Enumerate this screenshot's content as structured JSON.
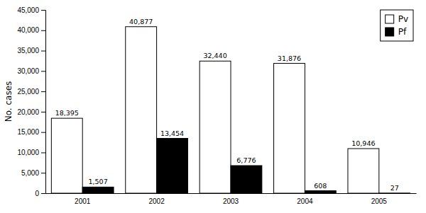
{
  "chart_data": {
    "type": "bar",
    "categories": [
      "2001",
      "2002",
      "2003",
      "2004",
      "2005"
    ],
    "series": [
      {
        "name": "Pv",
        "color": "#ffffff",
        "values": [
          18395,
          40877,
          32440,
          31876,
          10946
        ],
        "value_labels": [
          "18,395",
          "40,877",
          "32,440",
          "31,876",
          "10,946"
        ]
      },
      {
        "name": "Pf",
        "color": "#000000",
        "values": [
          1507,
          13454,
          6776,
          608,
          27
        ],
        "value_labels": [
          "1,507",
          "13,454",
          "6,776",
          "608",
          "27"
        ]
      }
    ],
    "y_label": "No. cases",
    "ylim": [
      0,
      45000
    ],
    "yticks": [
      0,
      {
        "value": 5000,
        "label": "5,000"
      },
      {
        "value": 10000,
        "label": "10,000"
      },
      {
        "value": 15000,
        "label": "15,000"
      },
      {
        "value": 20000,
        "label": "20,000"
      },
      {
        "value": 25000,
        "label": "25,000"
      },
      {
        "value": 30000,
        "label": "30,000"
      },
      {
        "value": 35000,
        "label": "35,000"
      },
      {
        "value": 40000,
        "label": "40,000"
      },
      {
        "value": 45000,
        "label": "45,000"
      }
    ],
    "data_labels": true,
    "legend": "upper right",
    "grid": false
  }
}
